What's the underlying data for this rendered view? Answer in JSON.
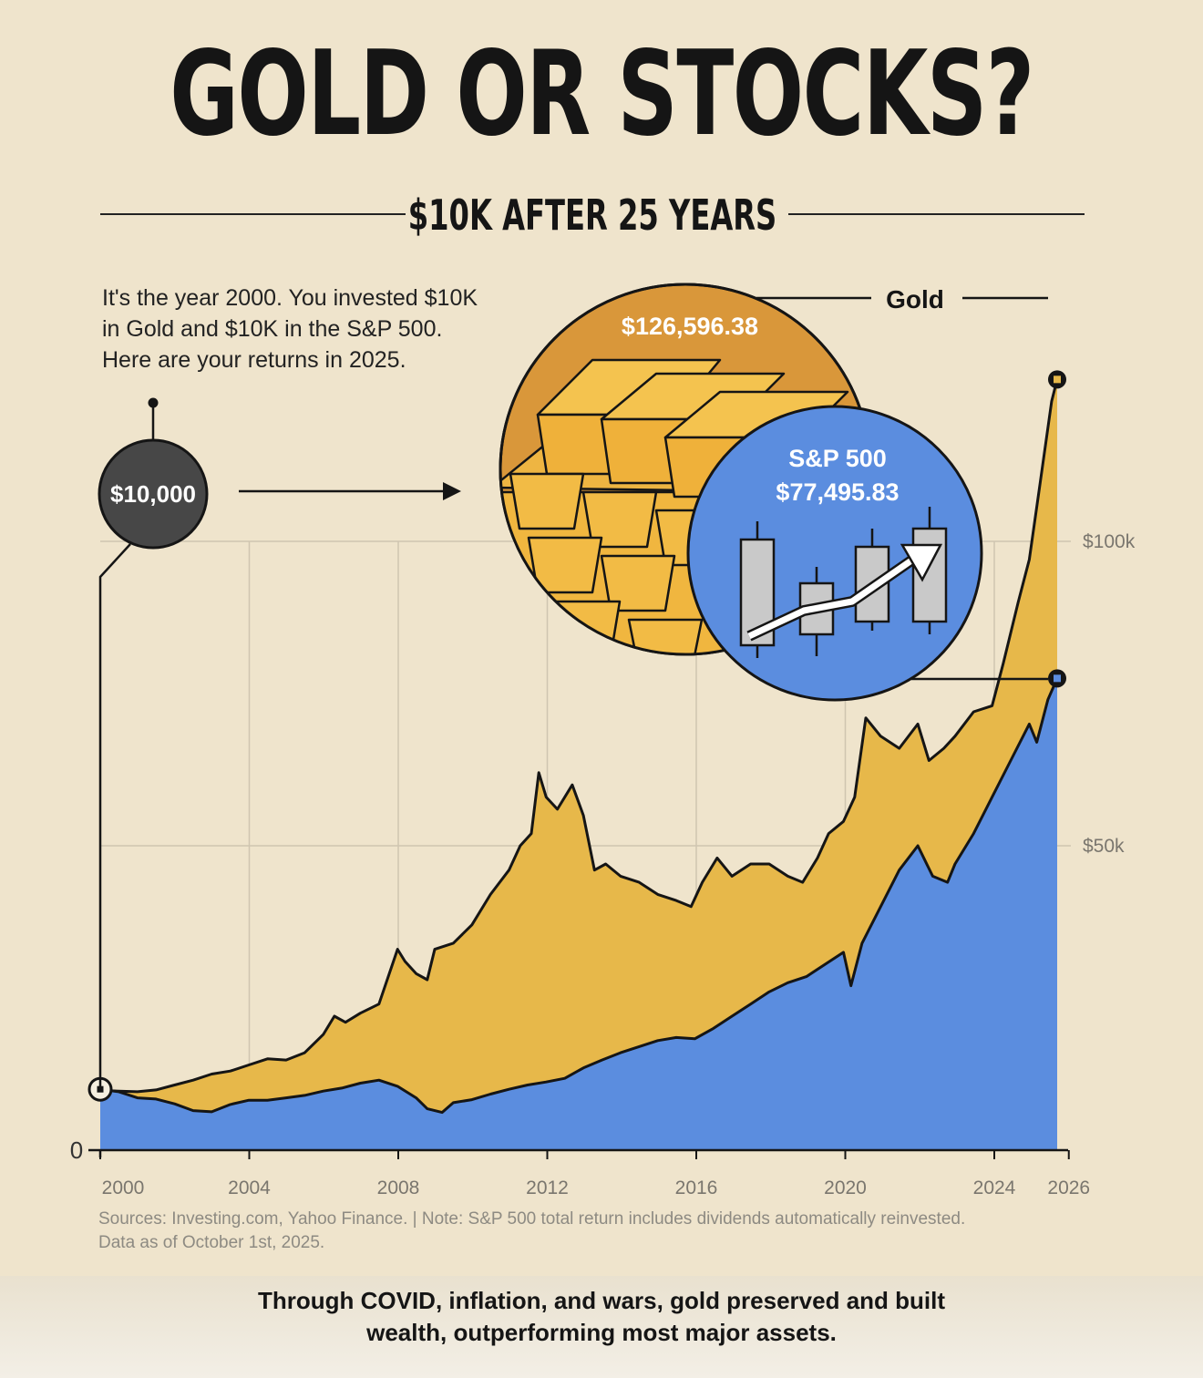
{
  "title": "GOLD OR STOCKS?",
  "subtitle": "$10K AFTER 25 YEARS",
  "intro": {
    "line1": "It's the year 2000. You invested $10K",
    "line2": "in Gold and $10K in the S&P 500.",
    "line3": "Here are your returns in 2025."
  },
  "start_badge": "$10,000",
  "gold_callout": {
    "label": "Gold",
    "value": "$126,596.38"
  },
  "sp_callout": {
    "label": "S&P 500",
    "value": "$77,495.83"
  },
  "sources": {
    "line1": "Sources: Investing.com, Yahoo Finance. | Note: S&P 500 total return includes dividends automatically reinvested.",
    "line2": "Data as of October 1st, 2025."
  },
  "caption": {
    "line1": "Through COVID, inflation, and wars, gold preserved and built",
    "line2": "wealth, outperforming most major assets."
  },
  "colors": {
    "gold": "#e7b84a",
    "sp500": "#5b8ddf",
    "background": "#efe4cc",
    "line": "#151515"
  },
  "icons": [
    "gold-bars-icon",
    "candlestick-chart-icon",
    "arrow-right-icon"
  ],
  "chart_data": {
    "type": "area",
    "xlim": [
      2000,
      2026
    ],
    "ylim": [
      0,
      100000
    ],
    "x_ticks": [
      {
        "value": 2000,
        "label": "2000"
      },
      {
        "value": 2004,
        "label": "2004"
      },
      {
        "value": 2008,
        "label": "2008"
      },
      {
        "value": 2012,
        "label": "2012"
      },
      {
        "value": 2016,
        "label": "2016"
      },
      {
        "value": 2020,
        "label": "2020"
      },
      {
        "value": 2024,
        "label": "2024"
      },
      {
        "value": 2026,
        "label": "2026"
      }
    ],
    "y_ticks": [
      {
        "value": 0,
        "label": "0"
      },
      {
        "value": 50000,
        "label": "$50k"
      },
      {
        "value": 100000,
        "label": "$100k"
      }
    ],
    "grid": true,
    "series": [
      {
        "name": "Gold",
        "color": "#e7b84a",
        "x": [
          2000.0,
          2000.5,
          2001.0,
          2001.5,
          2002.0,
          2002.5,
          2003.0,
          2003.5,
          2004.0,
          2004.5,
          2005.0,
          2005.5,
          2006.0,
          2006.3,
          2006.6,
          2007.0,
          2007.5,
          2008.0,
          2008.2,
          2008.5,
          2008.8,
          2009.0,
          2009.5,
          2010.0,
          2010.5,
          2011.0,
          2011.3,
          2011.6,
          2011.8,
          2012.0,
          2012.3,
          2012.7,
          2013.0,
          2013.3,
          2013.6,
          2014.0,
          2014.5,
          2015.0,
          2015.5,
          2015.9,
          2016.2,
          2016.6,
          2017.0,
          2017.5,
          2018.0,
          2018.5,
          2018.9,
          2019.3,
          2019.6,
          2020.0,
          2020.3,
          2020.6,
          2021.0,
          2021.5,
          2022.0,
          2022.3,
          2022.7,
          2023.0,
          2023.5,
          2024.0,
          2024.3,
          2024.7,
          2025.0,
          2025.3,
          2025.6,
          2025.75
        ],
        "values": [
          9800,
          9700,
          9600,
          9900,
          10700,
          11500,
          12500,
          13000,
          14000,
          15000,
          14800,
          16000,
          19000,
          22000,
          21000,
          22500,
          24000,
          33000,
          31000,
          29000,
          28000,
          33000,
          34000,
          37000,
          42000,
          46000,
          50000,
          52000,
          62000,
          58000,
          56000,
          60000,
          55000,
          46000,
          47000,
          45000,
          44000,
          42000,
          41000,
          40000,
          44000,
          48000,
          45000,
          47000,
          47000,
          45000,
          44000,
          48000,
          52000,
          54000,
          58000,
          71000,
          68000,
          66000,
          70000,
          64000,
          66000,
          68000,
          72000,
          73000,
          80000,
          90000,
          97000,
          110000,
          123000,
          126596.38
        ]
      },
      {
        "name": "S&P 500",
        "color": "#5b8ddf",
        "x": [
          2000.0,
          2000.5,
          2001.0,
          2001.5,
          2002.0,
          2002.5,
          2003.0,
          2003.5,
          2004.0,
          2004.5,
          2005.0,
          2005.5,
          2006.0,
          2006.5,
          2007.0,
          2007.5,
          2008.0,
          2008.5,
          2008.8,
          2009.2,
          2009.5,
          2010.0,
          2010.5,
          2011.0,
          2011.5,
          2012.0,
          2012.5,
          2013.0,
          2013.5,
          2014.0,
          2014.5,
          2015.0,
          2015.5,
          2016.0,
          2016.5,
          2017.0,
          2017.5,
          2018.0,
          2018.5,
          2019.0,
          2019.5,
          2020.0,
          2020.2,
          2020.5,
          2021.0,
          2021.5,
          2022.0,
          2022.4,
          2022.8,
          2023.0,
          2023.5,
          2024.0,
          2024.5,
          2025.0,
          2025.2,
          2025.5,
          2025.75
        ],
        "values": [
          10000,
          9600,
          8600,
          8400,
          7600,
          6500,
          6300,
          7500,
          8200,
          8200,
          8600,
          9000,
          9700,
          10200,
          11000,
          11500,
          10500,
          8600,
          6800,
          6200,
          7800,
          8300,
          9200,
          10000,
          10700,
          11200,
          11800,
          13500,
          14800,
          16000,
          17000,
          18000,
          18500,
          18300,
          20000,
          22000,
          24000,
          26000,
          27500,
          28500,
          30500,
          32500,
          27000,
          34000,
          40000,
          46000,
          50000,
          45000,
          44000,
          47000,
          52000,
          58000,
          64000,
          70000,
          67000,
          74000,
          77495.83
        ]
      }
    ]
  }
}
